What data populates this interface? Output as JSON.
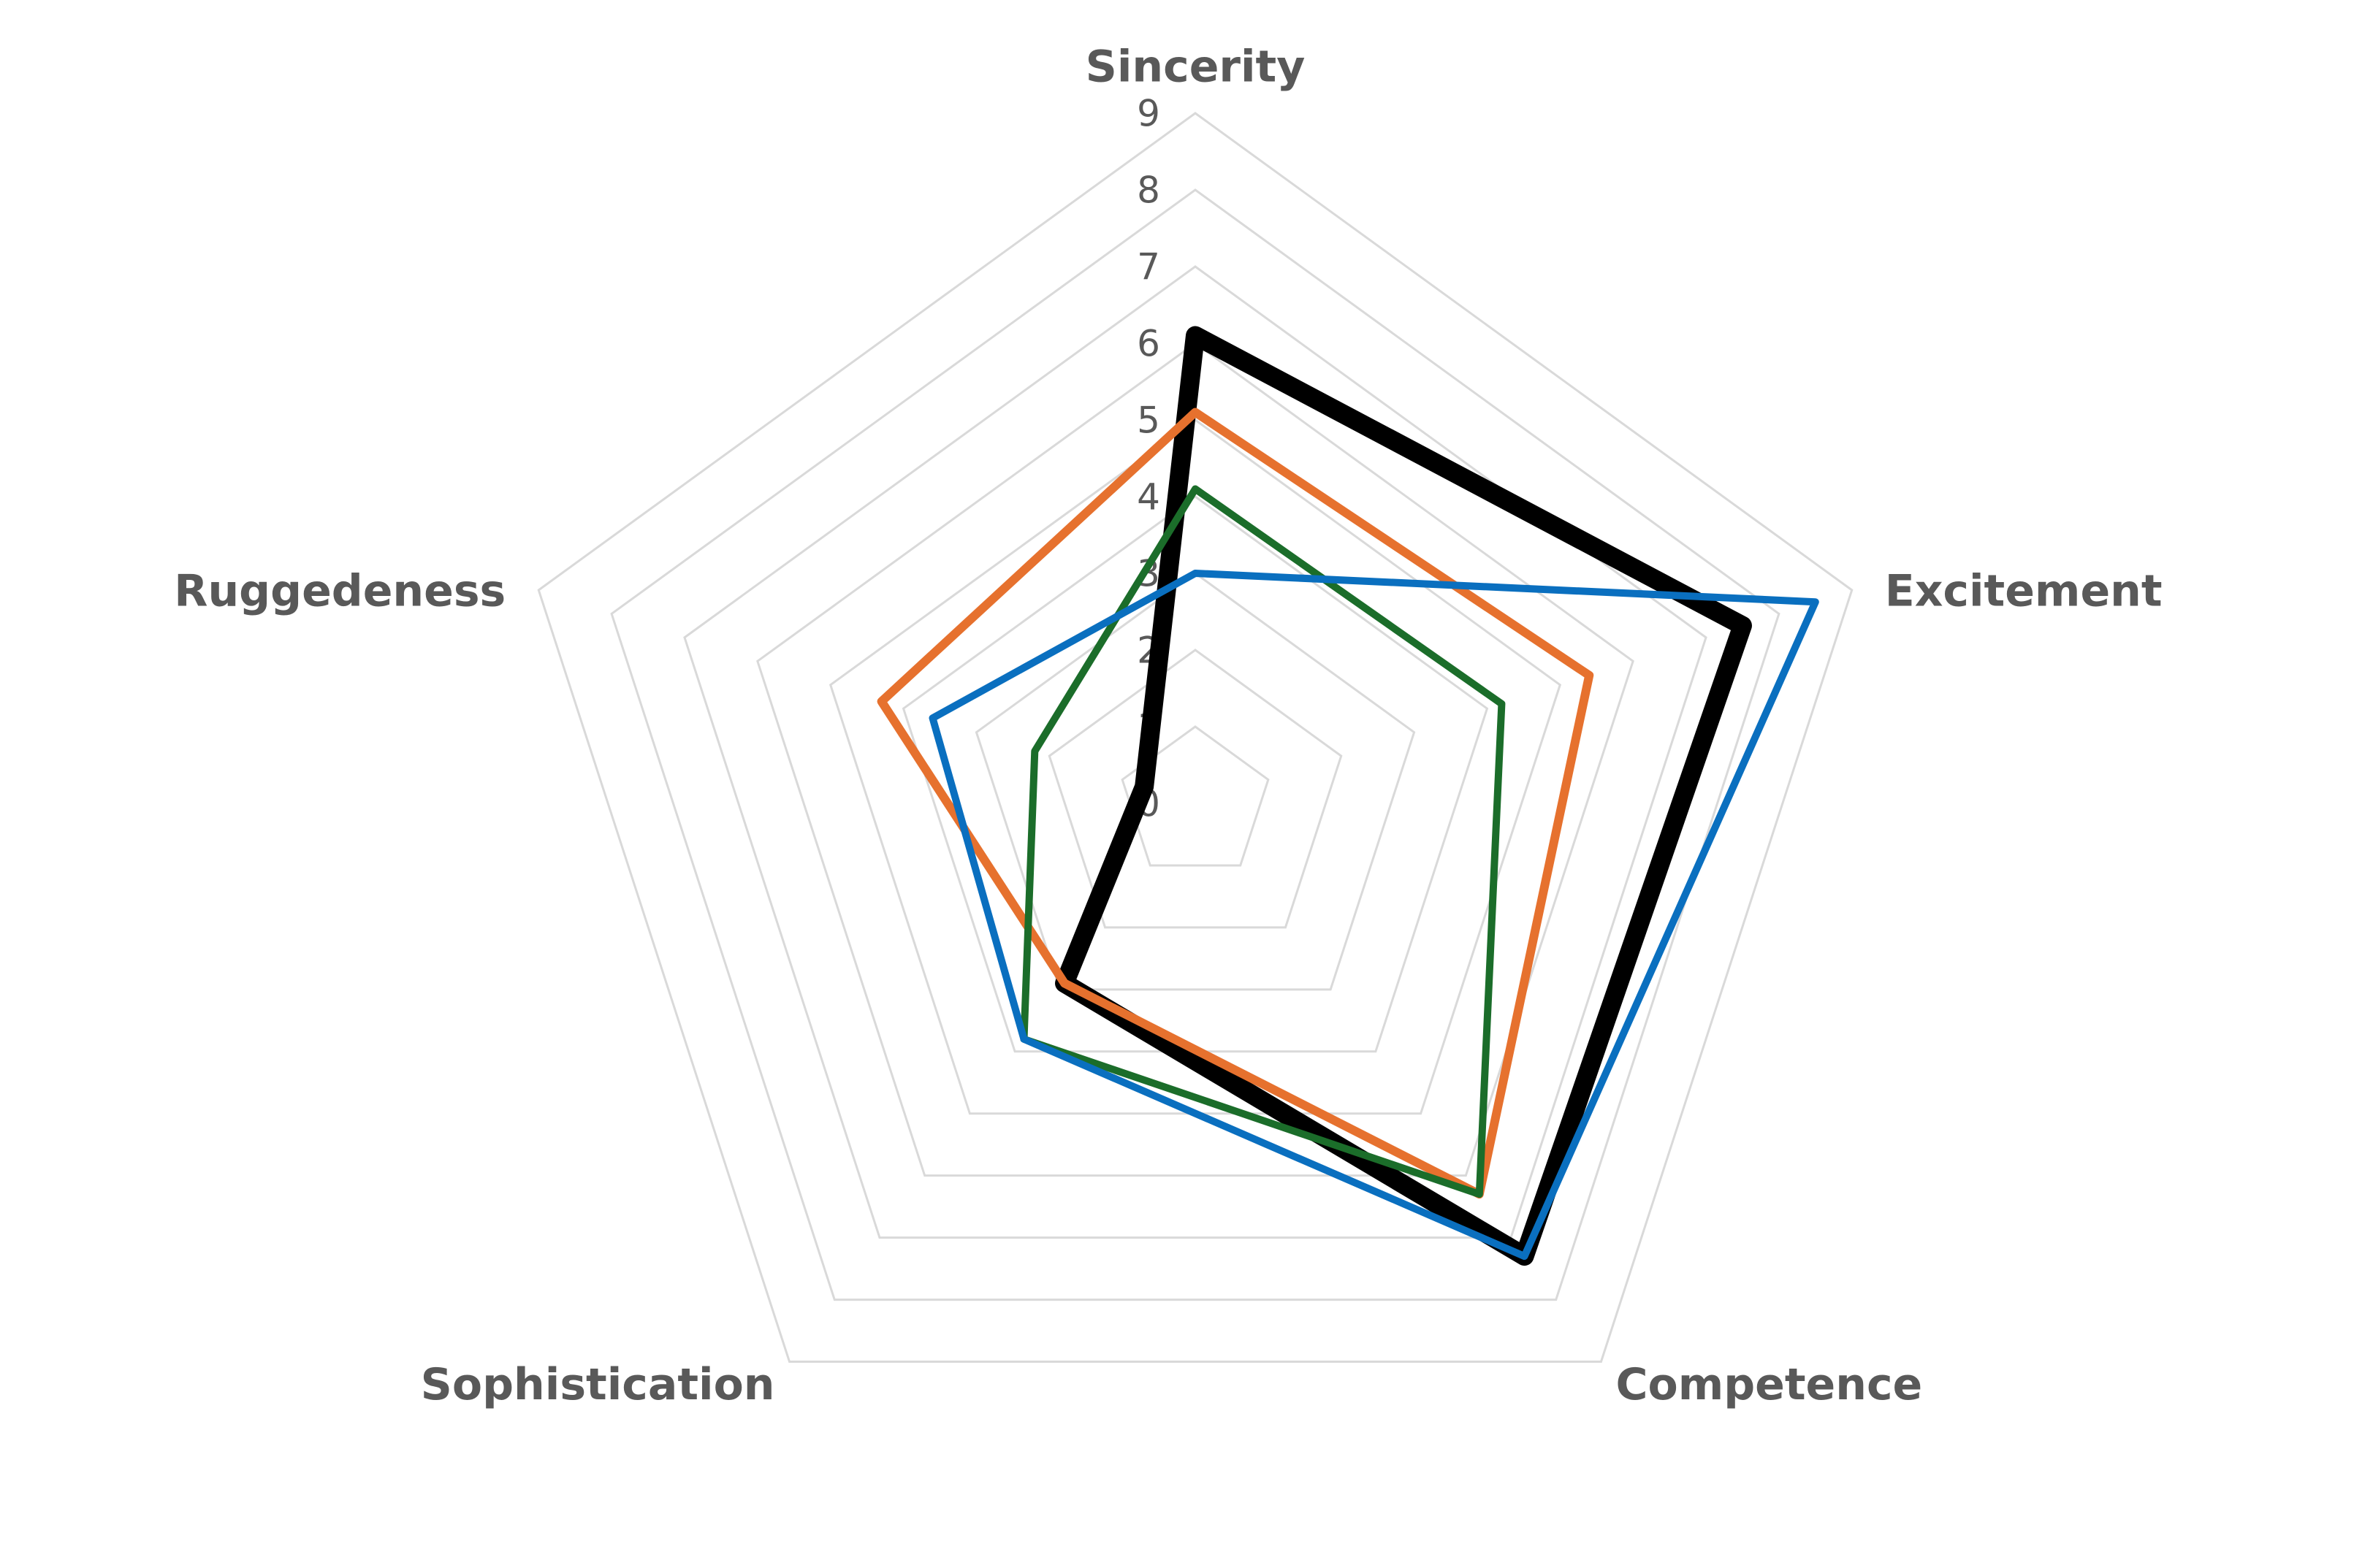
{
  "chart_data": {
    "type": "radar",
    "categories": [
      "Sincerity",
      "Excitement",
      "Competence",
      "Sophistication",
      "Ruggedeness"
    ],
    "rmin": 0,
    "rmax": 9,
    "ticks": [
      "0",
      "1",
      "2",
      "3",
      "4",
      "5",
      "6",
      "7",
      "8",
      "9"
    ],
    "grid": true,
    "legend": "none",
    "series": [
      {
        "color": "#000000",
        "values": [
          6.1,
          7.5,
          7.3,
          2.9,
          0.7
        ]
      },
      {
        "color": "#E6712E",
        "values": [
          5.1,
          5.4,
          6.3,
          2.9,
          4.3
        ]
      },
      {
        "color": "#1B6D2A",
        "values": [
          4.1,
          4.2,
          6.3,
          3.8,
          2.2
        ]
      },
      {
        "color": "#0A6FBF",
        "values": [
          3.0,
          8.5,
          7.3,
          3.8,
          3.6
        ]
      }
    ],
    "colors": {
      "grid": "#D9D9D9",
      "axis_label": "#595959",
      "tick_label": "#595959"
    }
  }
}
